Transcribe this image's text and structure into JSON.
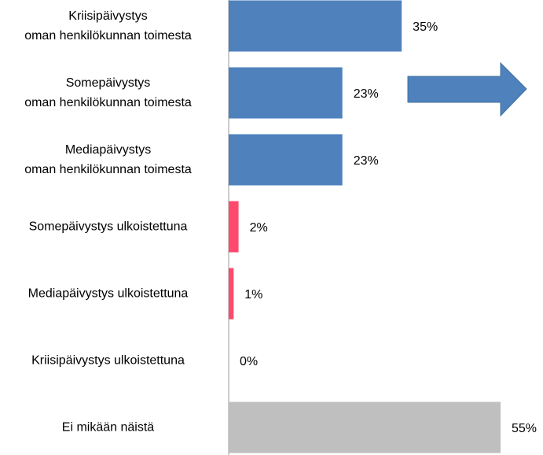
{
  "chart_data": {
    "type": "barh",
    "categories": [
      "Kriisipäivystys\noman henkilökunnan toimesta",
      "Somepäivystys\noman henkilökunnan toimesta",
      "Mediapäivystys\noman henkilökunnan toimesta",
      "Somepäivystys ulkoistettuna",
      "Mediapäivystys ulkoistettuna",
      "Kriisipäivystys ulkoistettuna",
      "Ei mikään näistä"
    ],
    "values": [
      35,
      23,
      23,
      2,
      1,
      0,
      55
    ],
    "value_labels": [
      "35%",
      "23%",
      "23%",
      "2%",
      "1%",
      "0%",
      "55%"
    ],
    "colors": [
      "#4f81bd",
      "#4f81bd",
      "#4f81bd",
      "#ff4a6e",
      "#ff4a6e",
      "#ff4a6e",
      "#bfbfbf"
    ],
    "xlim": [
      0,
      55
    ]
  }
}
